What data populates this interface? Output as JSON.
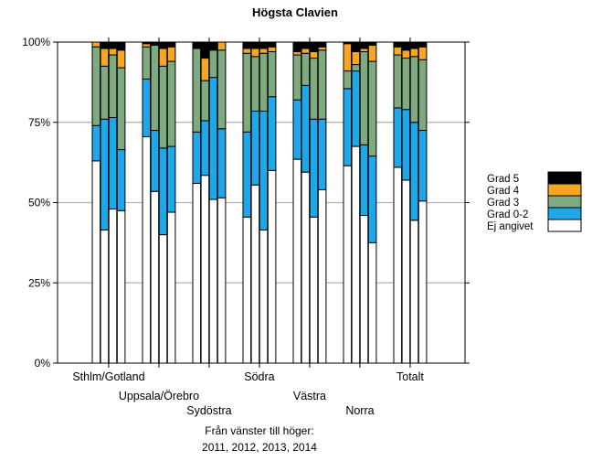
{
  "chart_data": {
    "type": "bar",
    "stacked": true,
    "percent": true,
    "title": "Högsta Clavien",
    "ylim": [
      0,
      100
    ],
    "yticks": [
      "0%",
      "25%",
      "50%",
      "75%",
      "100%"
    ],
    "grid": true,
    "legend_position": "right",
    "x_note": [
      "Från vänster till höger:",
      "2011, 2012, 2013, 2014"
    ],
    "years": [
      "2011",
      "2012",
      "2013",
      "2014"
    ],
    "series": [
      {
        "name": "Ej angivet",
        "color": "#ffffff"
      },
      {
        "name": "Grad 0-2",
        "color": "#1ea8ea"
      },
      {
        "name": "Grad 3",
        "color": "#7faa7f"
      },
      {
        "name": "Grad 4",
        "color": "#f6a623"
      },
      {
        "name": "Grad 5",
        "color": "#000000"
      }
    ],
    "groups": [
      {
        "name": "Sthlm/Gotland",
        "label_row": 0,
        "bars": [
          [
            63,
            11,
            24.5,
            1.5,
            0
          ],
          [
            41.5,
            34.5,
            16.5,
            5.5,
            2
          ],
          [
            48,
            28.5,
            19.5,
            2,
            2
          ],
          [
            47.5,
            19,
            25.5,
            5.5,
            2.5
          ]
        ]
      },
      {
        "name": "Uppsala/Örebro",
        "label_row": 1,
        "bars": [
          [
            70.5,
            18,
            10,
            1,
            0.5
          ],
          [
            53.5,
            19,
            26.5,
            0,
            1
          ],
          [
            40,
            27,
            25.5,
            5.5,
            2
          ],
          [
            47,
            20.5,
            26.5,
            4.5,
            1.5
          ]
        ]
      },
      {
        "name": "Sydöstra",
        "label_row": 2,
        "bars": [
          [
            56,
            16,
            26,
            0,
            2
          ],
          [
            58.5,
            17,
            12.5,
            7,
            5
          ],
          [
            51,
            38,
            8.5,
            0,
            2.5
          ],
          [
            51.5,
            21.5,
            24.5,
            2.5,
            0
          ]
        ]
      },
      {
        "name": "Södra",
        "label_row": 0,
        "bars": [
          [
            45.5,
            26.5,
            24.5,
            1.5,
            2
          ],
          [
            55.5,
            23,
            17,
            2.5,
            2
          ],
          [
            41.5,
            37,
            18,
            1.5,
            2
          ],
          [
            60,
            23,
            14,
            1.5,
            1.5
          ]
        ]
      },
      {
        "name": "Västra",
        "label_row": 1,
        "bars": [
          [
            63.5,
            18.5,
            14,
            1,
            3
          ],
          [
            59.5,
            27,
            10,
            1.5,
            2
          ],
          [
            45.5,
            30.5,
            19,
            2,
            3
          ],
          [
            54,
            22,
            21.5,
            1,
            1.5
          ]
        ]
      },
      {
        "name": "Norra",
        "label_row": 2,
        "bars": [
          [
            61.5,
            24,
            5.5,
            8.5,
            0.5
          ],
          [
            67.5,
            23.5,
            2,
            4,
            3
          ],
          [
            46,
            22,
            29,
            1,
            2
          ],
          [
            37.5,
            27,
            29.5,
            5,
            1
          ]
        ]
      },
      {
        "name": "Totalt",
        "label_row": 0,
        "bars": [
          [
            61,
            18.5,
            16.5,
            2.5,
            1.5
          ],
          [
            57,
            22,
            16,
            2.5,
            2.5
          ],
          [
            44.5,
            30.5,
            20.5,
            2.5,
            2
          ],
          [
            50.5,
            22,
            22,
            4,
            1.5
          ]
        ]
      }
    ]
  }
}
